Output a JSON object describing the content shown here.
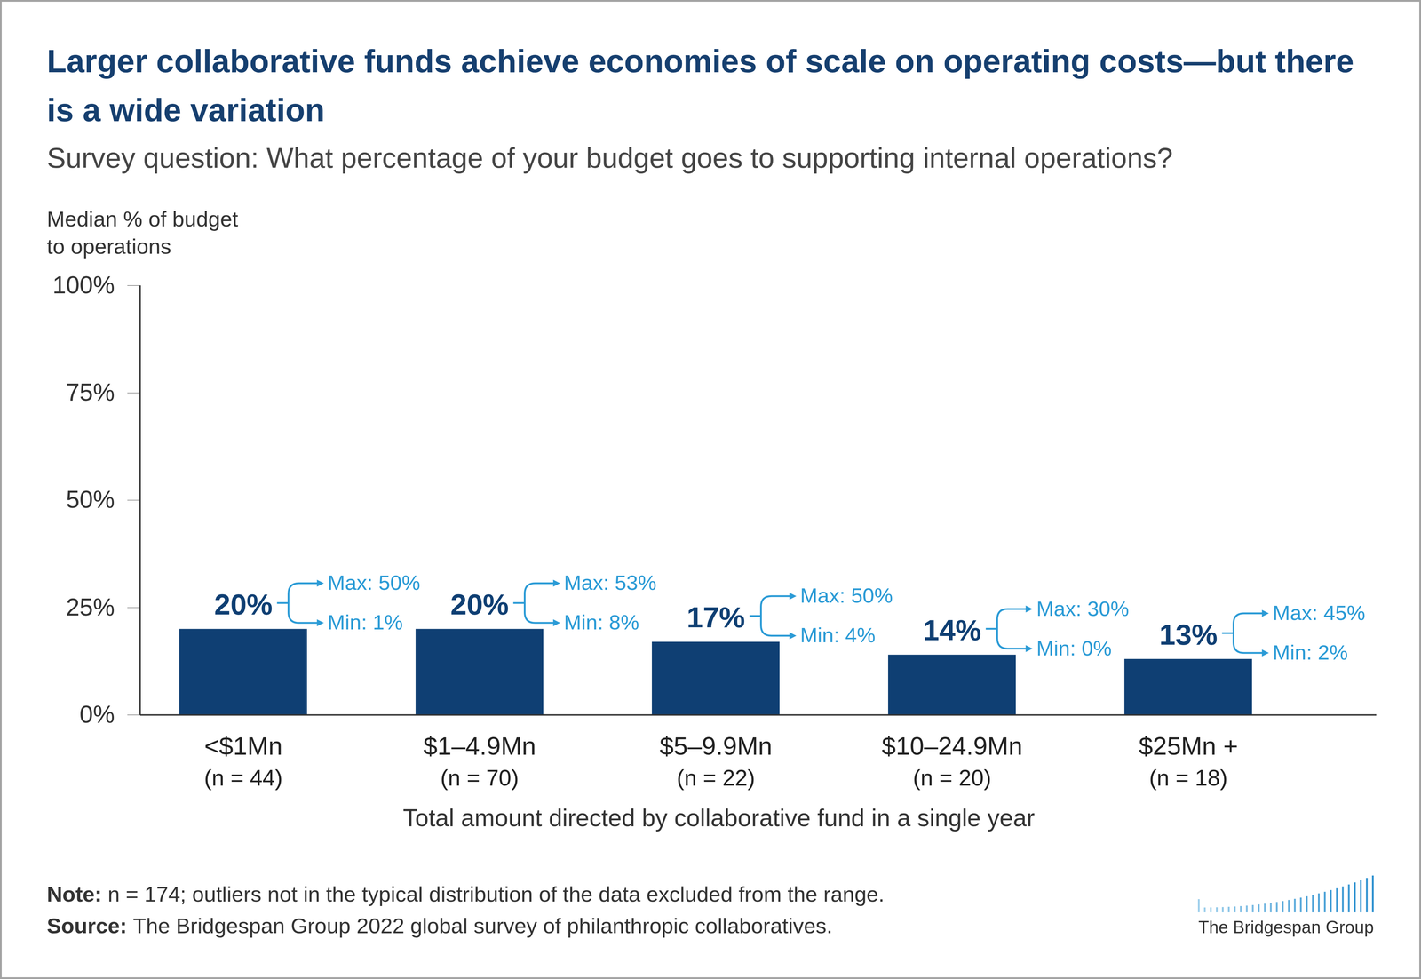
{
  "chart_data": {
    "type": "bar",
    "title": "Larger collaborative funds achieve economies of scale on operating costs—but there is a wide variation",
    "subtitle": "Survey question: What percentage of your budget goes to supporting internal operations?",
    "y_label": "Median % of budget to operations",
    "x_label": "Total amount directed by collaborative fund in a single year",
    "categories": [
      "<$1Mn",
      "$1–4.9Mn",
      "$5–9.9Mn",
      "$10–24.9Mn",
      "$25Mn +"
    ],
    "category_notes": [
      "(n = 44)",
      "(n = 70)",
      "(n = 22)",
      "(n = 20)",
      "(n = 18)"
    ],
    "values": [
      20,
      20,
      17,
      14,
      13
    ],
    "value_labels": [
      "20%",
      "20%",
      "17%",
      "14%",
      "13%"
    ],
    "max_labels": [
      "Max: 50%",
      "Max: 53%",
      "Max: 50%",
      "Max: 30%",
      "Max: 45%"
    ],
    "min_labels": [
      "Min: 1%",
      "Min: 8%",
      "Min: 4%",
      "Min: 0%",
      "Min: 2%"
    ],
    "data_labels": true,
    "color": "#0f3f73",
    "ylim": [
      0,
      100
    ],
    "yticks": [
      {
        "value": 0,
        "label": "0%"
      },
      {
        "value": 25,
        "label": "25%"
      },
      {
        "value": 50,
        "label": "50%"
      },
      {
        "value": 75,
        "label": "75%"
      },
      {
        "value": 100,
        "label": "100%"
      }
    ],
    "note_label": "Note:",
    "note": "n = 174; outliers not in the typical distribution of the data excluded from the range.",
    "source_label": "Source:",
    "source": "The Bridgespan Group 2022 global survey of philanthropic collaboratives.",
    "logo": "The Bridgespan Group"
  }
}
